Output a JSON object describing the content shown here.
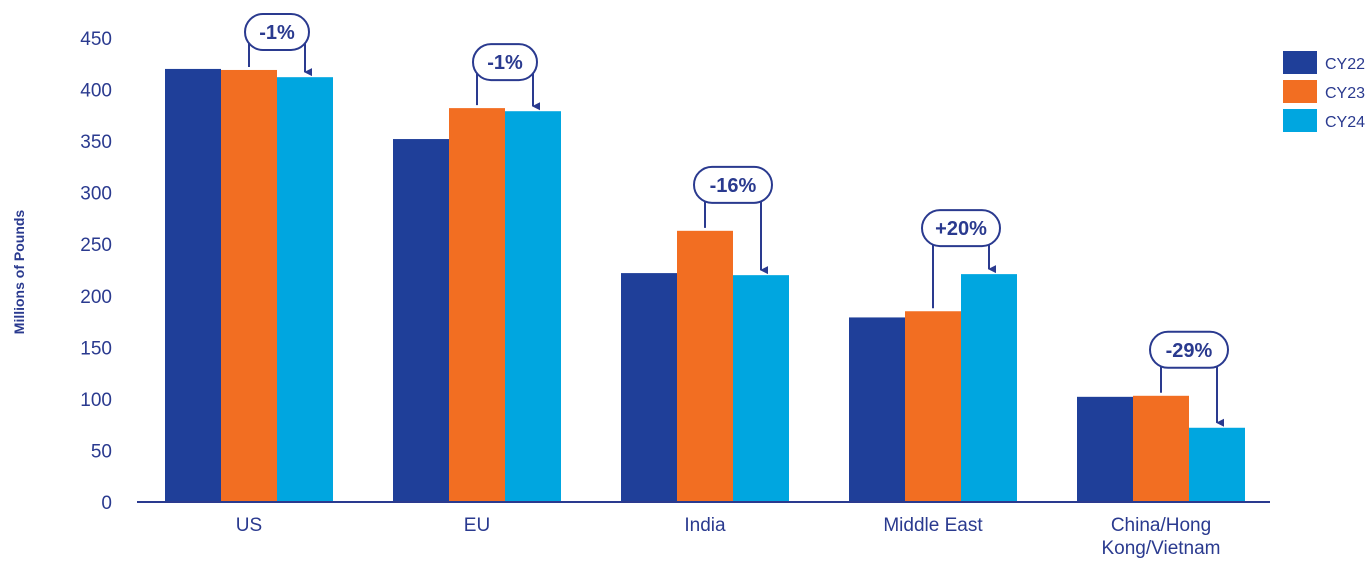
{
  "chart_data": {
    "type": "bar",
    "title": "",
    "xlabel": "",
    "ylabel": "Millions of Pounds",
    "ylim": [
      0,
      450
    ],
    "yticks": [
      0,
      50,
      100,
      150,
      200,
      250,
      300,
      350,
      400,
      450
    ],
    "grid": false,
    "legend_position": "top-right",
    "categories": [
      [
        "US"
      ],
      [
        "EU"
      ],
      [
        "India"
      ],
      [
        "Middle East"
      ],
      [
        "China/Hong",
        "Kong/Vietnam"
      ]
    ],
    "series": [
      {
        "name": "CY22",
        "color": "#1f3f99",
        "values": [
          420,
          352,
          222,
          179,
          102
        ]
      },
      {
        "name": "CY23",
        "color": "#f26e22",
        "values": [
          419,
          382,
          263,
          185,
          103
        ]
      },
      {
        "name": "CY24",
        "color": "#00a6e0",
        "values": [
          412,
          379,
          220,
          221,
          72
        ]
      }
    ],
    "annotations": [
      {
        "category_index": 0,
        "text": "-1%"
      },
      {
        "category_index": 1,
        "text": "-1%"
      },
      {
        "category_index": 2,
        "text": "-16%"
      },
      {
        "category_index": 3,
        "text": "+20%"
      },
      {
        "category_index": 4,
        "text": "-29%"
      }
    ]
  }
}
